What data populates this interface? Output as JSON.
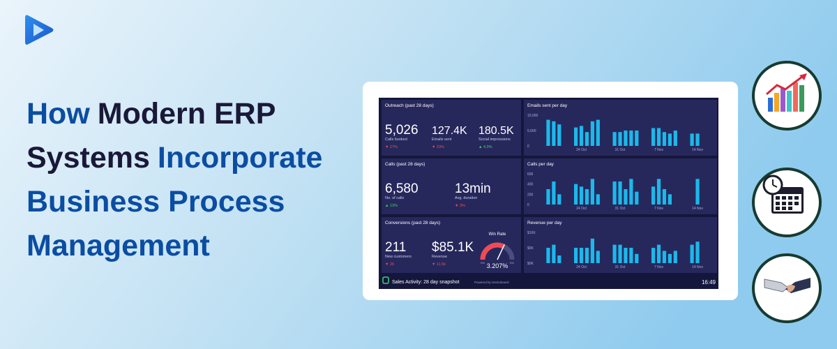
{
  "title_lines": [
    [
      {
        "text": "How",
        "color": "#0b4da2"
      },
      {
        "text": "Modern ERP",
        "color": "#1a1838"
      }
    ],
    [
      {
        "text": "Systems",
        "color": "#1a1838"
      },
      {
        "text": "Incorporate",
        "color": "#0b4da2"
      }
    ],
    [
      {
        "text": "Business Process",
        "color": "#0b4da2"
      }
    ],
    [
      {
        "text": "Management",
        "color": "#0b4da2"
      }
    ]
  ],
  "dashboard": {
    "outreach": {
      "title": "Outreach (past 28 days)",
      "metrics": [
        {
          "value": "5,026",
          "label": "Calls booked",
          "delta": "▼ 27%",
          "delta_color": "#ef4b55"
        },
        {
          "value": "127.4K",
          "label": "Emails sent",
          "delta": "▼ 23%",
          "delta_color": "#ef4b55"
        },
        {
          "value": "180.5K",
          "label": "Social impressions",
          "delta": "▲ 4.3%",
          "delta_color": "#3fd27a"
        }
      ]
    },
    "calls": {
      "title": "Calls (past 28 days)",
      "metrics": [
        {
          "value": "6,580",
          "label": "No. of calls",
          "delta": "▲ 13%",
          "delta_color": "#3fd27a"
        },
        {
          "value": "13min",
          "label": "Avg. duration",
          "delta": "▼ 3%",
          "delta_color": "#ef4b55"
        }
      ]
    },
    "conversions": {
      "title": "Conversions (past 28 days)",
      "metrics": [
        {
          "value": "211",
          "label": "New customers",
          "delta": "▼ 26",
          "delta_color": "#ef4b55"
        },
        {
          "value": "$85.1K",
          "label": "Revenue",
          "delta": "▼ 11.5k",
          "delta_color": "#ef4b55"
        }
      ],
      "win_rate": {
        "title": "Win Rate",
        "value": 3.207,
        "value_label": "3.207%",
        "range": [
          {
            "value": 0,
            "label": "0%"
          },
          {
            "value": 5,
            "label": "5%"
          }
        ]
      }
    },
    "charts": [
      {
        "type": "bar",
        "title": "Emails sent per day",
        "color": "#1cb8ea",
        "categories": [
          null,
          null,
          null,
          null,
          null,
          null,
          "24 Oct",
          null,
          null,
          null,
          null,
          null,
          null,
          "31 Oct",
          null,
          null,
          null,
          null,
          null,
          null,
          "7 Nov",
          null,
          null,
          null,
          null,
          null,
          null,
          "14 Nov"
        ],
        "values": [
          8500,
          8000,
          7000,
          null,
          null,
          6000,
          6500,
          4500,
          8000,
          8500,
          null,
          null,
          4500,
          4500,
          5000,
          5000,
          5000,
          null,
          null,
          5800,
          5800,
          4500,
          4000,
          5000,
          null,
          null,
          4000,
          4000
        ],
        "ylim": [
          0,
          10000
        ],
        "yticks": [
          0,
          {
            "value": 5000,
            "label": "5,000"
          },
          {
            "value": 10000,
            "label": "10,000"
          }
        ]
      },
      {
        "type": "bar",
        "title": "Calls per day",
        "color": "#1cb8ea",
        "categories": [
          null,
          null,
          null,
          null,
          null,
          null,
          "24 Oct",
          null,
          null,
          null,
          null,
          null,
          null,
          "31 Oct",
          null,
          null,
          null,
          null,
          null,
          null,
          "7 Nov",
          null,
          null,
          null,
          null,
          null,
          null,
          "14 Nov"
        ],
        "values": [
          300,
          450,
          200,
          null,
          null,
          400,
          350,
          300,
          500,
          200,
          null,
          null,
          450,
          450,
          300,
          500,
          250,
          null,
          null,
          350,
          500,
          300,
          200,
          null,
          null,
          null,
          null,
          500
        ],
        "ylim": [
          0,
          600
        ],
        "yticks": [
          0,
          200,
          400,
          600
        ]
      },
      {
        "type": "bar",
        "title": "Revenue per day",
        "color": "#1cb8ea",
        "categories": [
          null,
          null,
          null,
          null,
          null,
          null,
          "24 Oct",
          null,
          null,
          null,
          null,
          null,
          null,
          "31 Oct",
          null,
          null,
          null,
          null,
          null,
          null,
          "7 Nov",
          null,
          null,
          null,
          null,
          null,
          null,
          "14 Nov"
        ],
        "values": [
          5000,
          6000,
          2500,
          null,
          null,
          5000,
          5000,
          5000,
          8000,
          4000,
          null,
          null,
          6000,
          6000,
          5000,
          5000,
          3000,
          null,
          null,
          5000,
          6000,
          4000,
          3000,
          4000,
          null,
          null,
          6000,
          7000
        ],
        "ylim": [
          0,
          10000
        ],
        "yticks": [
          {
            "value": 0,
            "label": "$0K"
          },
          {
            "value": 5000,
            "label": "$5K"
          },
          {
            "value": 10000,
            "label": "$10K"
          }
        ]
      }
    ],
    "footer": {
      "label": "Sales Activity: 28 day snapshot",
      "powered": "Powered by Geckoboard",
      "time": "16:49"
    }
  }
}
